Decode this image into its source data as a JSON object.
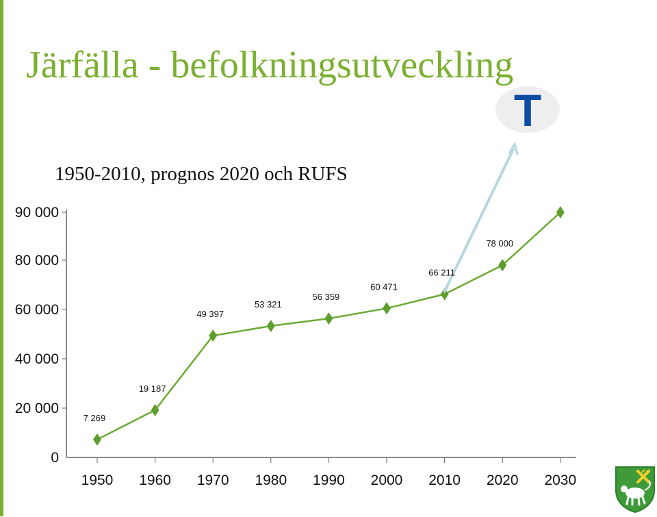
{
  "page": {
    "title": "Järfälla - befolkningsutveckling",
    "subtitle": "1950-2010, prognos 2020 och RUFS",
    "badge_letter": "T",
    "badge_icon": "metro-t-icon",
    "crest_icon": "coat-of-arms-icon"
  },
  "colors": {
    "accent": "#7ab030",
    "line": "#6aaa34",
    "marker": "#5e9e2c",
    "badge_blue": "#0b4da2",
    "arrow": "#b7d6e0"
  },
  "chart_data": {
    "type": "line",
    "title": "",
    "xlabel": "",
    "ylabel": "",
    "categories": [
      "1950",
      "1960",
      "1970",
      "1980",
      "1990",
      "2000",
      "2010",
      "2020",
      "2030"
    ],
    "series": [
      {
        "values": [
          7269,
          19187,
          49397,
          53321,
          56359,
          60471,
          66211,
          78000,
          90000
        ],
        "data_labels": [
          "7 269",
          "19 187",
          "49 397",
          "53 321",
          "56 359",
          "60 471",
          "66 211",
          "78 000",
          null
        ]
      }
    ],
    "y_ticks": [
      {
        "value": 0,
        "label": "0"
      },
      {
        "value": 20000,
        "label": "20 000"
      },
      {
        "value": 40000,
        "label": "40 000"
      },
      {
        "value": 60000,
        "label": "60 000"
      },
      {
        "value": 80000,
        "label": "80 000"
      },
      {
        "value": 90000,
        "label": "90 000"
      }
    ],
    "ylim": [
      0,
      90000
    ],
    "grid": false,
    "legend": "none",
    "marker": "diamond",
    "annotations": [
      {
        "type": "arrow",
        "from_category": "2010",
        "from_value": 66211,
        "to": "metro-t-icon"
      }
    ]
  }
}
